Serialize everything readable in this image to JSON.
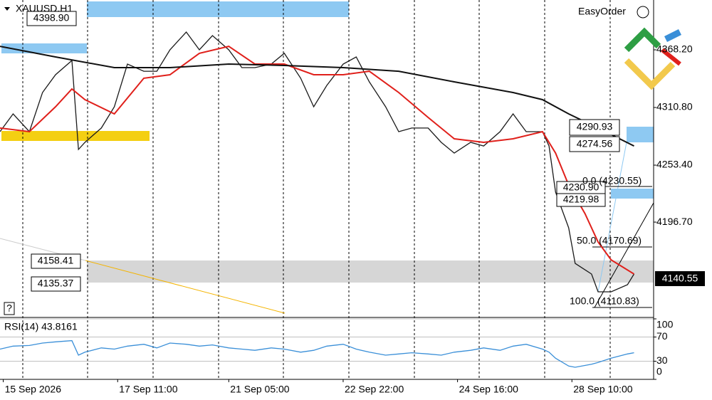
{
  "chart_data": [
    {
      "type": "line",
      "title": "XAUUSD,H1",
      "xlim": [
        0,
        200
      ],
      "ylim": [
        4102.5,
        4417.8
      ],
      "yticks": [
        {
          "value": 4368.2,
          "label": "4368.20"
        },
        {
          "value": 4310.8,
          "label": "4310.80"
        },
        {
          "value": 4253.4,
          "label": "4253.40"
        },
        {
          "value": 4196.7,
          "label": "4196.70"
        }
      ],
      "series": [
        {
          "color": "#1a1a1a",
          "x": [
            0,
            4,
            9,
            13,
            17,
            22,
            24,
            26,
            31,
            35,
            39,
            44,
            48,
            52,
            57,
            61,
            65,
            70,
            74,
            78,
            83,
            87,
            92,
            96,
            100,
            105,
            109,
            113,
            118,
            122,
            126,
            131,
            135,
            139,
            144,
            148,
            153,
            157,
            161,
            166,
            168,
            170,
            174,
            176,
            181,
            183,
            187,
            192,
            194
          ],
          "values": [
            4286.7,
            4304.4,
            4286.7,
            4325.7,
            4343.4,
            4357.6,
            4269.0,
            4276.1,
            4290.3,
            4311.5,
            4354.0,
            4346.9,
            4346.9,
            4368.2,
            4385.9,
            4368.2,
            4382.4,
            4368.2,
            4350.5,
            4350.5,
            4354.0,
            4364.7,
            4339.9,
            4311.5,
            4332.8,
            4354.0,
            4361.1,
            4336.3,
            4311.5,
            4286.7,
            4290.3,
            4290.3,
            4276.1,
            4265.4,
            4276.1,
            4272.5,
            4286.7,
            4304.4,
            4286.7,
            4286.7,
            4272.5,
            4226.5,
            4191.0,
            4155.6,
            4145.0,
            4127.3,
            4127.3,
            4134.4,
            4145.0
          ]
        },
        {
          "color": "#e0201b",
          "x": [
            0,
            9,
            17,
            22,
            26,
            35,
            44,
            52,
            61,
            70,
            78,
            87,
            96,
            105,
            113,
            122,
            131,
            139,
            148,
            157,
            166,
            170,
            174,
            179,
            183,
            187,
            194
          ],
          "values": [
            4290.3,
            4286.7,
            4311.5,
            4329.2,
            4318.6,
            4304.4,
            4339.9,
            4343.4,
            4364.7,
            4371.7,
            4354.0,
            4354.0,
            4343.4,
            4343.4,
            4346.9,
            4325.7,
            4300.9,
            4279.6,
            4276.1,
            4279.6,
            4286.7,
            4265.4,
            4233.5,
            4205.2,
            4176.9,
            4159.1,
            4145.0
          ]
        },
        {
          "color": "#111111",
          "x": [
            0,
            17,
            35,
            52,
            70,
            87,
            105,
            122,
            139,
            157,
            166,
            174,
            183,
            194
          ],
          "values": [
            4371.7,
            4361.1,
            4350.5,
            4350.5,
            4354.0,
            4352.6,
            4350.5,
            4346.9,
            4336.3,
            4325.7,
            4318.6,
            4304.4,
            4290.3,
            4272.5
          ]
        }
      ],
      "annotations": [
        "4398.90",
        "4158.41",
        "4135.37",
        "4290.93",
        "4274.56",
        "4230.90",
        "4219.98",
        "0.0 (4230.55)",
        "50.0 (4170.69)",
        "100.0 (4110.83)",
        "4140.55",
        "EasyOrder",
        "?"
      ]
    },
    {
      "type": "line",
      "title": "RSI(14) 43.8161",
      "xlim": [
        0,
        200
      ],
      "ylim": [
        0,
        100
      ],
      "yticks": [
        0,
        30,
        70,
        100
      ],
      "xticks": [
        {
          "value": 1,
          "label": "15 Sep 2026"
        },
        {
          "value": 36,
          "label": "17 Sep 11:00"
        },
        {
          "value": 70,
          "label": "21 Sep 05:00"
        },
        {
          "value": 105,
          "label": "22 Sep 22:00"
        },
        {
          "value": 140,
          "label": "24 Sep 16:00"
        },
        {
          "value": 175,
          "label": "28 Sep 10:00"
        }
      ],
      "series": [
        {
          "color": "#3a8fd8",
          "x": [
            0,
            4,
            9,
            13,
            17,
            22,
            24,
            26,
            31,
            35,
            39,
            44,
            48,
            52,
            57,
            61,
            65,
            70,
            74,
            78,
            83,
            87,
            92,
            96,
            100,
            105,
            109,
            113,
            118,
            122,
            126,
            131,
            135,
            139,
            144,
            148,
            153,
            157,
            161,
            166,
            168,
            170,
            174,
            176,
            181,
            183,
            187,
            192,
            194
          ],
          "values": [
            50,
            55,
            56,
            60,
            62,
            64,
            40,
            45,
            52,
            50,
            55,
            58,
            52,
            60,
            58,
            55,
            57,
            52,
            50,
            48,
            52,
            50,
            45,
            48,
            55,
            58,
            50,
            45,
            40,
            42,
            44,
            42,
            40,
            45,
            48,
            52,
            48,
            55,
            58,
            50,
            45,
            35,
            22,
            20,
            25,
            28,
            35,
            42,
            44
          ]
        }
      ]
    }
  ]
}
